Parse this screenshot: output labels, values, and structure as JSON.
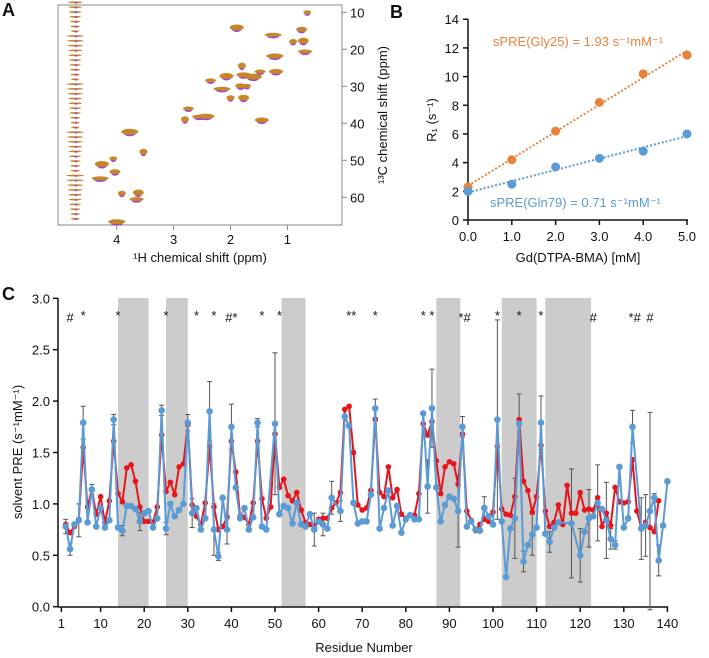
{
  "colors": {
    "orange": "#e8843a",
    "blue": "#5b9bd5",
    "red": "#e8141c",
    "shade": "#cccccc",
    "nmr_orange": "#c8862a",
    "nmr_purple": "#a040e0"
  },
  "chart_data": [
    {
      "panel": "A",
      "type": "heatmap",
      "xlabel": "¹H chemical shift (ppm)",
      "ylabel": "¹³C chemical shift (ppm)",
      "xlim": [
        5.0,
        0.0
      ],
      "ylim": [
        8,
        67.5
      ],
      "xticks": [
        "4",
        "3",
        "2",
        "1"
      ],
      "yticks": [
        "10",
        "20",
        "30",
        "40",
        "50",
        "60"
      ],
      "peaks": [
        [
          0.65,
          10
        ],
        [
          0.75,
          14.6
        ],
        [
          1.89,
          14.1
        ],
        [
          1.25,
          16.1
        ],
        [
          0.9,
          17.9
        ],
        [
          0.72,
          17.7
        ],
        [
          0.69,
          20.6
        ],
        [
          1.22,
          21.8
        ],
        [
          1.8,
          24.4
        ],
        [
          1.48,
          26
        ],
        [
          1.77,
          26.9
        ],
        [
          1.6,
          27.4
        ],
        [
          1.71,
          29.9
        ],
        [
          1.82,
          29.9
        ],
        [
          2.07,
          27.2
        ],
        [
          2.15,
          30.7
        ],
        [
          2.0,
          33.1
        ],
        [
          1.77,
          33.1
        ],
        [
          2.55,
          38.2
        ],
        [
          2.43,
          38.1
        ],
        [
          2.8,
          38.9
        ],
        [
          2.74,
          36
        ],
        [
          1.45,
          39.1
        ],
        [
          3.77,
          42.3
        ],
        [
          4.06,
          49.5
        ],
        [
          4.03,
          53.1
        ],
        [
          4.26,
          51
        ],
        [
          4.29,
          54.9
        ],
        [
          3.91,
          58.9
        ],
        [
          3.62,
          58.7
        ],
        [
          3.65,
          60.5
        ],
        [
          4.0,
          66.6
        ],
        [
          3.53,
          47.7
        ],
        [
          2.35,
          28.4
        ],
        [
          1.2,
          26
        ]
      ],
      "noise_band_ppm": 4.73
    },
    {
      "panel": "B",
      "type": "scatter",
      "xlabel": "Gd(DTPA-BMA) [mM]",
      "ylabel": "R₁ (s⁻¹)",
      "xlim": [
        0,
        5
      ],
      "ylim": [
        0,
        14
      ],
      "xticks": [
        "0.0",
        "1.0",
        "2.0",
        "3.0",
        "4.0",
        "5.0"
      ],
      "yticks": [
        "0",
        "2",
        "4",
        "6",
        "8",
        "10",
        "12",
        "14"
      ],
      "x": [
        0,
        1,
        2,
        3,
        4,
        5
      ],
      "series": [
        {
          "name": "sPRE(Gly25) = 1.93 s⁻¹mM⁻¹",
          "color": "#e8843a",
          "values": [
            2.3,
            4.2,
            6.2,
            8.2,
            10.2,
            11.5
          ]
        },
        {
          "name": "sPRE(Gln79) = 0.71 s⁻¹mM⁻¹",
          "color": "#5b9bd5",
          "values": [
            2.0,
            2.5,
            3.7,
            4.3,
            4.8,
            6.0
          ]
        }
      ]
    },
    {
      "panel": "C",
      "type": "line",
      "xlabel": "Residue Number",
      "ylabel": "solvent PRE (s⁻¹mM⁻¹)",
      "xlim": [
        1,
        140
      ],
      "ylim": [
        0,
        3.0
      ],
      "xticks": [
        1,
        10,
        20,
        30,
        40,
        50,
        60,
        70,
        80,
        90,
        100,
        110,
        120,
        130,
        140
      ],
      "yticks": [
        "0.0",
        "0.5",
        "1.0",
        "1.5",
        "2.0",
        "2.5",
        "3.0"
      ],
      "x_start": 2,
      "series": [
        {
          "color": "#e8141c",
          "values": [
            0.8,
            0.72,
            0.78,
            0.85,
            1.55,
            0.97,
            1.14,
            0.9,
            1.07,
            0.82,
            1.03,
            1.61,
            1.1,
            1.02,
            1.35,
            1.38,
            1.22,
            0.97,
            0.83,
            0.83,
            0.82,
            0.97,
            1.67,
            1.12,
            1.21,
            1.09,
            1.36,
            1.39,
            1.77,
            0.99,
            0.88,
            0.8,
            1.01,
            1.56,
            0.97,
            0.75,
            0.78,
            0.87,
            1.61,
            1.31,
            0.88,
            0.87,
            0.8,
            1.01,
            1.61,
            1.05,
            0.86,
            0.97,
            1.68,
            1.16,
            1.24,
            1.08,
            1.03,
            1.11,
            0.94,
            0.82,
            0.8,
            0.78,
            0.85,
            0.86,
            0.86,
            0.96,
            1.01,
            1.11,
            1.92,
            1.95,
            1.5,
            0.99,
            0.94,
            0.96,
            1.13,
            1.82,
            1.11,
            1.07,
            1.36,
            1.06,
            1.14,
            0.9,
            0.86,
            0.89,
            0.89,
            1.1,
            1.78,
            1.67,
            1.8,
            1.42,
            1.1,
            1.36,
            1.41,
            1.39,
            1.19,
            1.68,
            0.93,
            0.84,
            0.74,
            0.8,
            0.85,
            0.83,
            0.92,
            1.56,
            0.95,
            0.9,
            0.89,
            1.07,
            1.82,
            1.22,
            1.13,
            0.92,
            1.07,
            1.57,
            0.93,
            0.78,
            0.82,
            0.99,
            0.8,
            1.18,
            0.91,
            0.91,
            1.11,
            0.94,
            0.95,
            0.94,
            1.06,
            0.78,
            0.91,
            0.79,
            1.16,
            1.02,
            1.01,
            1.02,
            1.43,
            0.93,
            0.77,
            0.82,
            0.77,
            0.73,
            1.03,
            null,
            null
          ]
        },
        {
          "color": "#5b9bd5",
          "values": [
            0.78,
            0.56,
            0.8,
            0.84,
            1.79,
            0.82,
            1.14,
            0.78,
            0.96,
            0.77,
            0.84,
            1.82,
            0.77,
            0.74,
            0.98,
            0.98,
            0.95,
            0.83,
            0.91,
            0.93,
            0.77,
            0.86,
            1.91,
            0.76,
            1.0,
            0.88,
            0.94,
            1.0,
            1.79,
            0.91,
            0.96,
            0.75,
            0.86,
            1.9,
            0.75,
            0.49,
            1.06,
            0.75,
            1.75,
            1.16,
            0.86,
            0.96,
            0.75,
            0.87,
            1.79,
            0.78,
            0.75,
            null,
            1.78,
            0.9,
            0.98,
            0.96,
            0.81,
            1.01,
            0.8,
            0.78,
            0.9,
            0.75,
            0.83,
            0.8,
            0.76,
            1.06,
            null,
            0.93,
            1.85,
            1.76,
            1.01,
            0.81,
            0.83,
            0.83,
            1.09,
            1.93,
            0.76,
            0.96,
            1.13,
            0.79,
            0.98,
            0.72,
            0.85,
            0.89,
            0.85,
            0.85,
            1.88,
            1.17,
            1.93,
            1.16,
            0.83,
            0.99,
            1.07,
            1.05,
            0.93,
            1.75,
            0.78,
            0.83,
            0.75,
            0.74,
            0.96,
            0.88,
            0.8,
            1.82,
            0.83,
            0.29,
            0.76,
            0.86,
            1.78,
            0.44,
            0.6,
            0.7,
            0.77,
            1.79,
            0.71,
            0.63,
            0.77,
            0.82,
            null,
            null,
            0.81,
            null,
            0.5,
            0.73,
            0.86,
            0.88,
            1.01,
            0.95,
            0.84,
            0.66,
            0.6,
            1.36,
            0.77,
            0.86,
            1.75,
            null,
            0.76,
            0.79,
            0.93,
            1.06,
            0.45,
            0.79,
            1.22
          ]
        }
      ],
      "error_bars": [
        [
          2,
          0.07
        ],
        [
          3,
          0.06
        ],
        [
          5,
          0.16
        ],
        [
          6,
          0.16
        ],
        [
          8,
          0.05
        ],
        [
          13,
          0.05
        ],
        [
          15,
          0.05
        ],
        [
          19,
          0.09
        ],
        [
          24,
          0.05
        ],
        [
          25,
          0.06
        ],
        [
          30,
          0.08
        ],
        [
          31,
          0.14
        ],
        [
          35,
          0.29
        ],
        [
          36,
          0.25
        ],
        [
          37,
          0.04
        ],
        [
          39,
          0.14
        ],
        [
          40,
          0.22
        ],
        [
          46,
          0.04
        ],
        [
          50,
          0.69
        ],
        [
          59,
          0.16
        ],
        [
          61,
          0.11
        ],
        [
          63,
          0.16
        ],
        [
          65,
          0.1
        ],
        [
          73,
          0.09
        ],
        [
          85,
          0.26
        ],
        [
          86,
          0.38
        ],
        [
          92,
          0.35
        ],
        [
          93,
          0.1
        ],
        [
          98,
          0.11
        ],
        [
          101,
          0.97
        ],
        [
          105,
          0.39
        ],
        [
          106,
          0.29
        ],
        [
          107,
          0.1
        ],
        [
          109,
          0.2
        ],
        [
          111,
          0.26
        ],
        [
          113,
          0.1
        ],
        [
          118,
          0.53
        ],
        [
          120,
          0.26
        ],
        [
          122,
          0.28
        ],
        [
          124,
          0.37
        ],
        [
          126,
          0.37
        ],
        [
          127,
          0.1
        ],
        [
          128,
          0.04
        ],
        [
          132,
          0.16
        ],
        [
          134,
          0.3
        ],
        [
          135,
          0.3
        ],
        [
          136,
          0.96
        ],
        [
          137,
          0.04
        ],
        [
          138,
          0.15
        ]
      ],
      "shaded_regions": [
        [
          14,
          21
        ],
        [
          25,
          30
        ],
        [
          51.5,
          57
        ],
        [
          87,
          92.5
        ],
        [
          102,
          110
        ],
        [
          112,
          122.5
        ]
      ],
      "annotations": [
        [
          3,
          "#"
        ],
        [
          6,
          "*"
        ],
        [
          14,
          "*"
        ],
        [
          25,
          "*"
        ],
        [
          32,
          "*"
        ],
        [
          36,
          "*"
        ],
        [
          40,
          "#*"
        ],
        [
          47,
          "*"
        ],
        [
          51,
          "*"
        ],
        [
          67.5,
          "**"
        ],
        [
          73,
          "*"
        ],
        [
          84,
          "*"
        ],
        [
          86,
          "*"
        ],
        [
          93.5,
          "*#"
        ],
        [
          101,
          "*"
        ],
        [
          106,
          "*"
        ],
        [
          111,
          "*"
        ],
        [
          123,
          "#"
        ],
        [
          132.5,
          "*#"
        ],
        [
          136,
          "#"
        ]
      ]
    }
  ],
  "panels": {
    "a": "A",
    "b": "B",
    "c": "C"
  }
}
